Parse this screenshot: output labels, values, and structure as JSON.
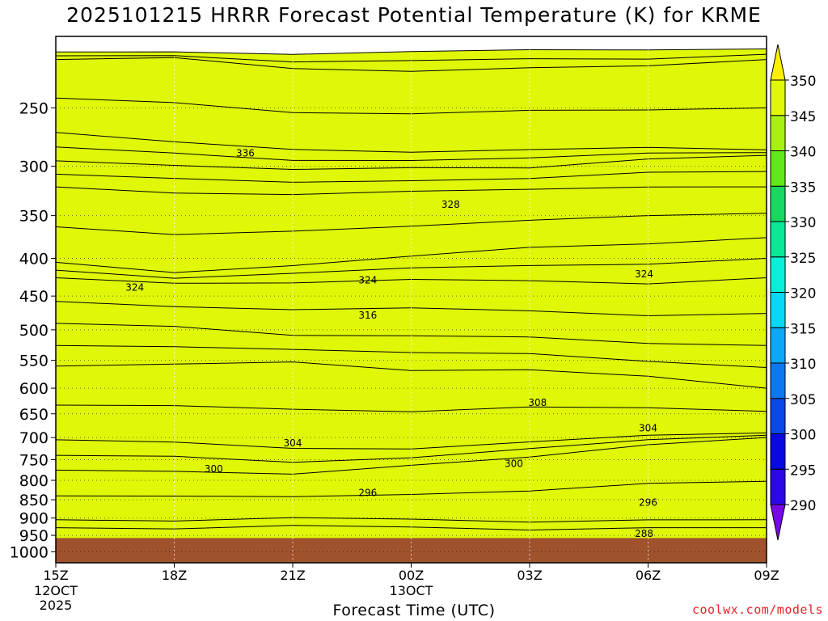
{
  "page": {
    "title": "2025101215 HRRR Forecast Potential Temperature (K) for KRME",
    "credit": "coolwx.com/models"
  },
  "chart_data": {
    "type": "contour",
    "title": "2025101215 HRRR Forecast Potential Temperature (K) for KRME",
    "xlabel": "Forecast Time (UTC)",
    "ylabel": "",
    "x_ticks": [
      {
        "label": "15Z",
        "sub": [
          "12OCT",
          "2025"
        ],
        "hour": 0
      },
      {
        "label": "18Z",
        "sub": [],
        "hour": 3
      },
      {
        "label": "21Z",
        "sub": [],
        "hour": 6
      },
      {
        "label": "00Z",
        "sub": [
          "13OCT"
        ],
        "hour": 9
      },
      {
        "label": "03Z",
        "sub": [],
        "hour": 12
      },
      {
        "label": "06Z",
        "sub": [],
        "hour": 15
      },
      {
        "label": "09Z",
        "sub": [],
        "hour": 18
      }
    ],
    "xlim": [
      0,
      18
    ],
    "y_ticks": [
      250,
      300,
      350,
      400,
      450,
      500,
      550,
      600,
      650,
      700,
      750,
      800,
      850,
      900,
      950,
      1000
    ],
    "ylim": [
      200,
      1035
    ],
    "y_scale": "log-pressure (inverted)",
    "surface_pressure": 958,
    "colorbar": {
      "levels": [
        290,
        295,
        300,
        305,
        310,
        315,
        320,
        325,
        330,
        335,
        340,
        345,
        350
      ],
      "colors": [
        "#7808e8",
        "#2c08e8",
        "#0808e0",
        "#0848e8",
        "#0c78f0",
        "#0ca8f8",
        "#08d8f8",
        "#08f0d8",
        "#08e898",
        "#18d860",
        "#60e818",
        "#a8f010",
        "#e0f808",
        "#fff000"
      ]
    },
    "fill_bands": [
      {
        "value": 290,
        "color": "#7808e8",
        "pressure": [
          950,
          950,
          950,
          950,
          950,
          950,
          950
        ]
      },
      {
        "value": 295,
        "color": "#2c08e8",
        "pressure": [
          905,
          905,
          905,
          905,
          905,
          905,
          905
        ]
      },
      {
        "value": 300,
        "color": "#0808e0",
        "pressure": [
          775,
          780,
          790,
          760,
          740,
          720,
          700
        ]
      },
      {
        "value": 305,
        "color": "#0848e8",
        "pressure": [
          705,
          715,
          725,
          720,
          710,
          700,
          690
        ]
      },
      {
        "value": 310,
        "color": "#0c78f0",
        "pressure": [
          560,
          560,
          550,
          565,
          570,
          580,
          600
        ]
      },
      {
        "value": 315,
        "color": "#0ca8f8",
        "pressure": [
          490,
          495,
          505,
          510,
          515,
          520,
          525
        ]
      },
      {
        "value": 320,
        "color": "#08d8f8",
        "pressure": [
          425,
          430,
          430,
          430,
          430,
          430,
          425
        ]
      },
      {
        "value": 325,
        "color": "#08f0d8",
        "pressure": [
          405,
          415,
          410,
          400,
          385,
          380,
          375
        ]
      },
      {
        "value": 330,
        "color": "#08e898",
        "pressure": [
          320,
          325,
          330,
          325,
          320,
          320,
          320
        ]
      },
      {
        "value": 335,
        "color": "#18d860",
        "pressure": [
          295,
          300,
          305,
          300,
          300,
          295,
          290
        ]
      },
      {
        "value": 340,
        "color": "#60e818",
        "pressure": [
          270,
          280,
          285,
          285,
          285,
          285,
          285
        ]
      },
      {
        "value": 345,
        "color": "#a8f010",
        "pressure": [
          215,
          215,
          220,
          222,
          222,
          220,
          215
        ]
      },
      {
        "value": 350,
        "color": "#e0f808",
        "pressure": [
          210,
          210,
          210,
          210,
          210,
          208,
          208
        ]
      }
    ],
    "contour_labels": [
      {
        "text": "336",
        "hour": 4.8,
        "pressure": 288
      },
      {
        "text": "328",
        "hour": 10,
        "pressure": 338
      },
      {
        "text": "324",
        "hour": 2,
        "pressure": 438
      },
      {
        "text": "324",
        "hour": 7.9,
        "pressure": 428
      },
      {
        "text": "324",
        "hour": 14.9,
        "pressure": 420
      },
      {
        "text": "316",
        "hour": 7.9,
        "pressure": 478
      },
      {
        "text": "308",
        "hour": 12.2,
        "pressure": 628
      },
      {
        "text": "304",
        "hour": 6,
        "pressure": 712
      },
      {
        "text": "304",
        "hour": 15,
        "pressure": 680
      },
      {
        "text": "300",
        "hour": 4,
        "pressure": 772
      },
      {
        "text": "300",
        "hour": 11.6,
        "pressure": 760
      },
      {
        "text": "296",
        "hour": 7.9,
        "pressure": 832
      },
      {
        "text": "296",
        "hour": 15,
        "pressure": 858
      },
      {
        "text": "288",
        "hour": 14.9,
        "pressure": 945
      }
    ]
  }
}
